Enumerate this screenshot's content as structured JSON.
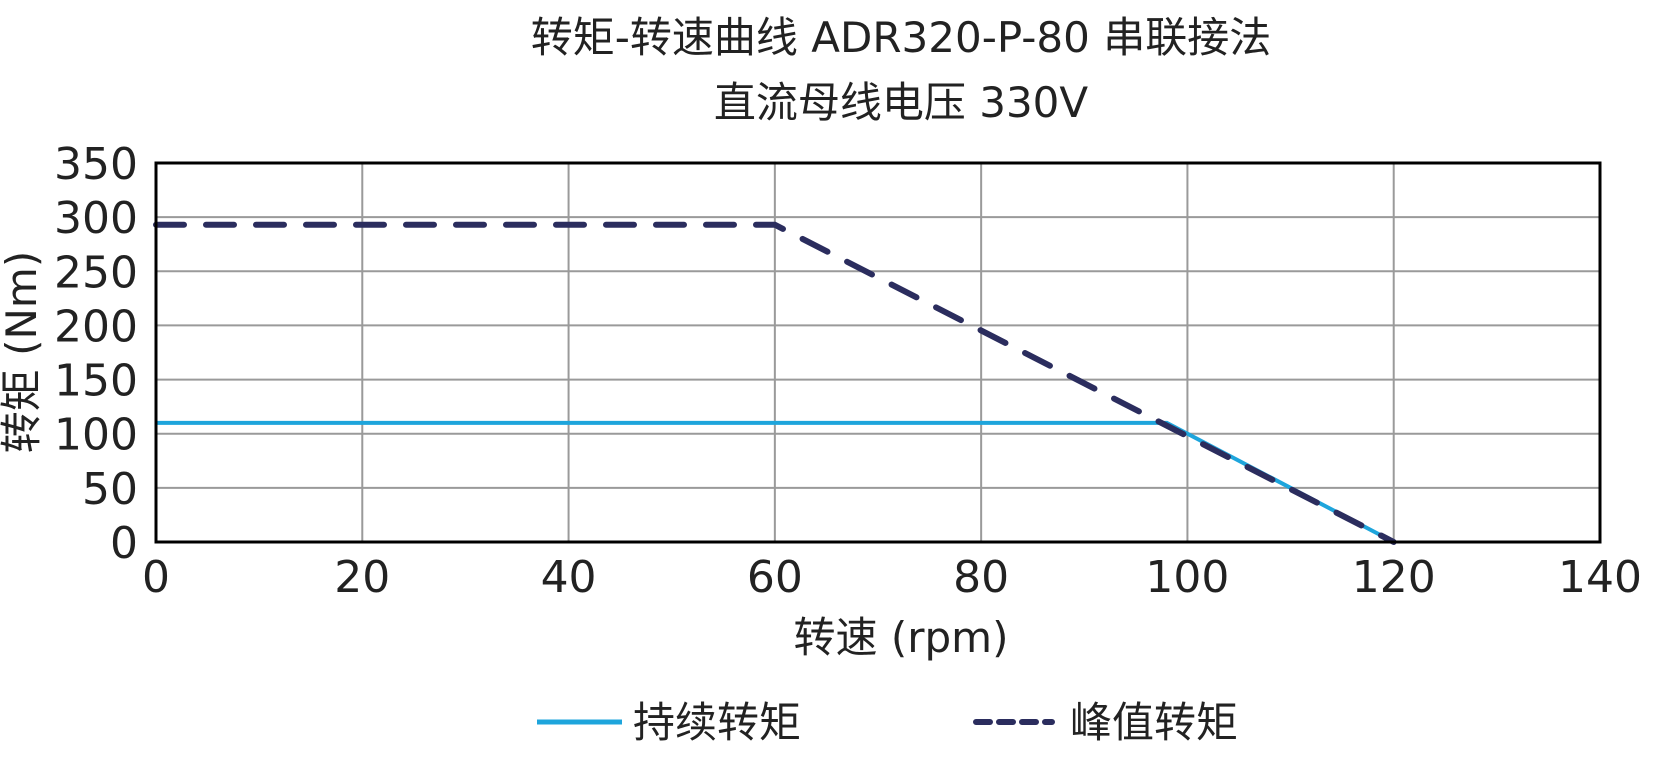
{
  "chart_data": {
    "type": "line",
    "title": "转矩-转速曲线 ADR320-P-80 串联接法",
    "subtitle": "直流母线电压 330V",
    "xlabel": "转速 (rpm)",
    "ylabel": "转矩 (Nm)",
    "xlim": [
      0,
      140
    ],
    "ylim": [
      0,
      350
    ],
    "xticks": [
      0,
      20,
      40,
      60,
      80,
      100,
      120,
      140
    ],
    "yticks": [
      0,
      50,
      100,
      150,
      200,
      250,
      300,
      350
    ],
    "grid": true,
    "legend_position": "bottom",
    "series": [
      {
        "name": "持续转矩",
        "style": "solid",
        "color": "#1ea5dc",
        "x": [
          0,
          98,
          120
        ],
        "y": [
          110,
          110,
          0
        ]
      },
      {
        "name": "峰值转矩",
        "style": "dashed",
        "color": "#2b2d5e",
        "x": [
          0,
          60,
          120
        ],
        "y": [
          293,
          293,
          0
        ]
      }
    ]
  }
}
